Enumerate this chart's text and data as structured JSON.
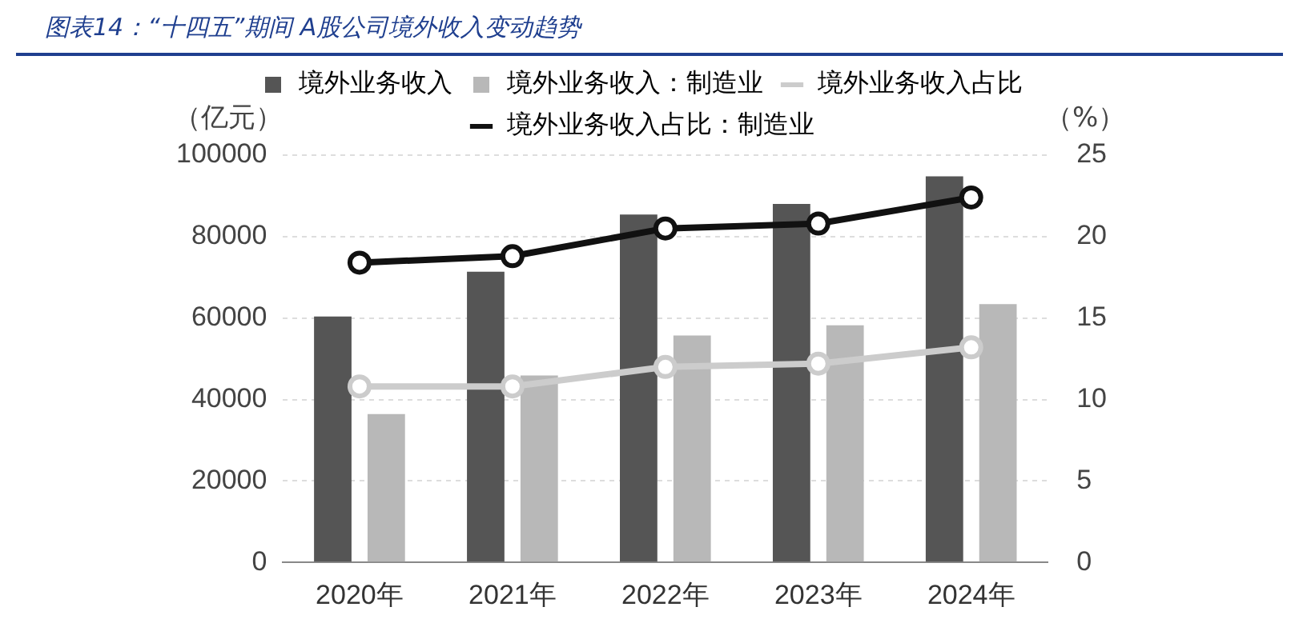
{
  "chart_data": {
    "type": "bar",
    "title": "图表14：“十四五”期间  A股公司境外收入变动趋势",
    "ylabel": "（亿元）",
    "y2label": "（%）",
    "categories": [
      "2020年",
      "2021年",
      "2022年",
      "2023年",
      "2024年"
    ],
    "series": [
      {
        "name": "境外业务收入",
        "color": "#555555",
        "values": [
          60400,
          71400,
          85400,
          88000,
          94800
        ]
      },
      {
        "name": "境外业务收入：制造业",
        "color": "#b8b8b8",
        "values": [
          36400,
          45900,
          55700,
          58200,
          63400
        ]
      },
      {
        "name": "境外业务收入占比",
        "type": "line",
        "axis": "y2",
        "color": "#cccccc",
        "values": [
          10.8,
          10.8,
          12.0,
          12.2,
          13.2
        ]
      },
      {
        "name": "境外业务收入占比：制造业",
        "type": "line",
        "axis": "y2",
        "color": "#111111",
        "values": [
          18.4,
          18.8,
          20.5,
          20.8,
          22.4
        ]
      }
    ],
    "ylim": [
      0,
      100000
    ],
    "yticks": [
      0,
      20000,
      40000,
      60000,
      80000,
      100000
    ],
    "y2lim": [
      0,
      25
    ],
    "y2ticks": [
      0,
      5,
      10,
      15,
      20,
      25
    ],
    "grid": "y",
    "legend": "top",
    "marker": "circle",
    "line_style": "solid"
  }
}
